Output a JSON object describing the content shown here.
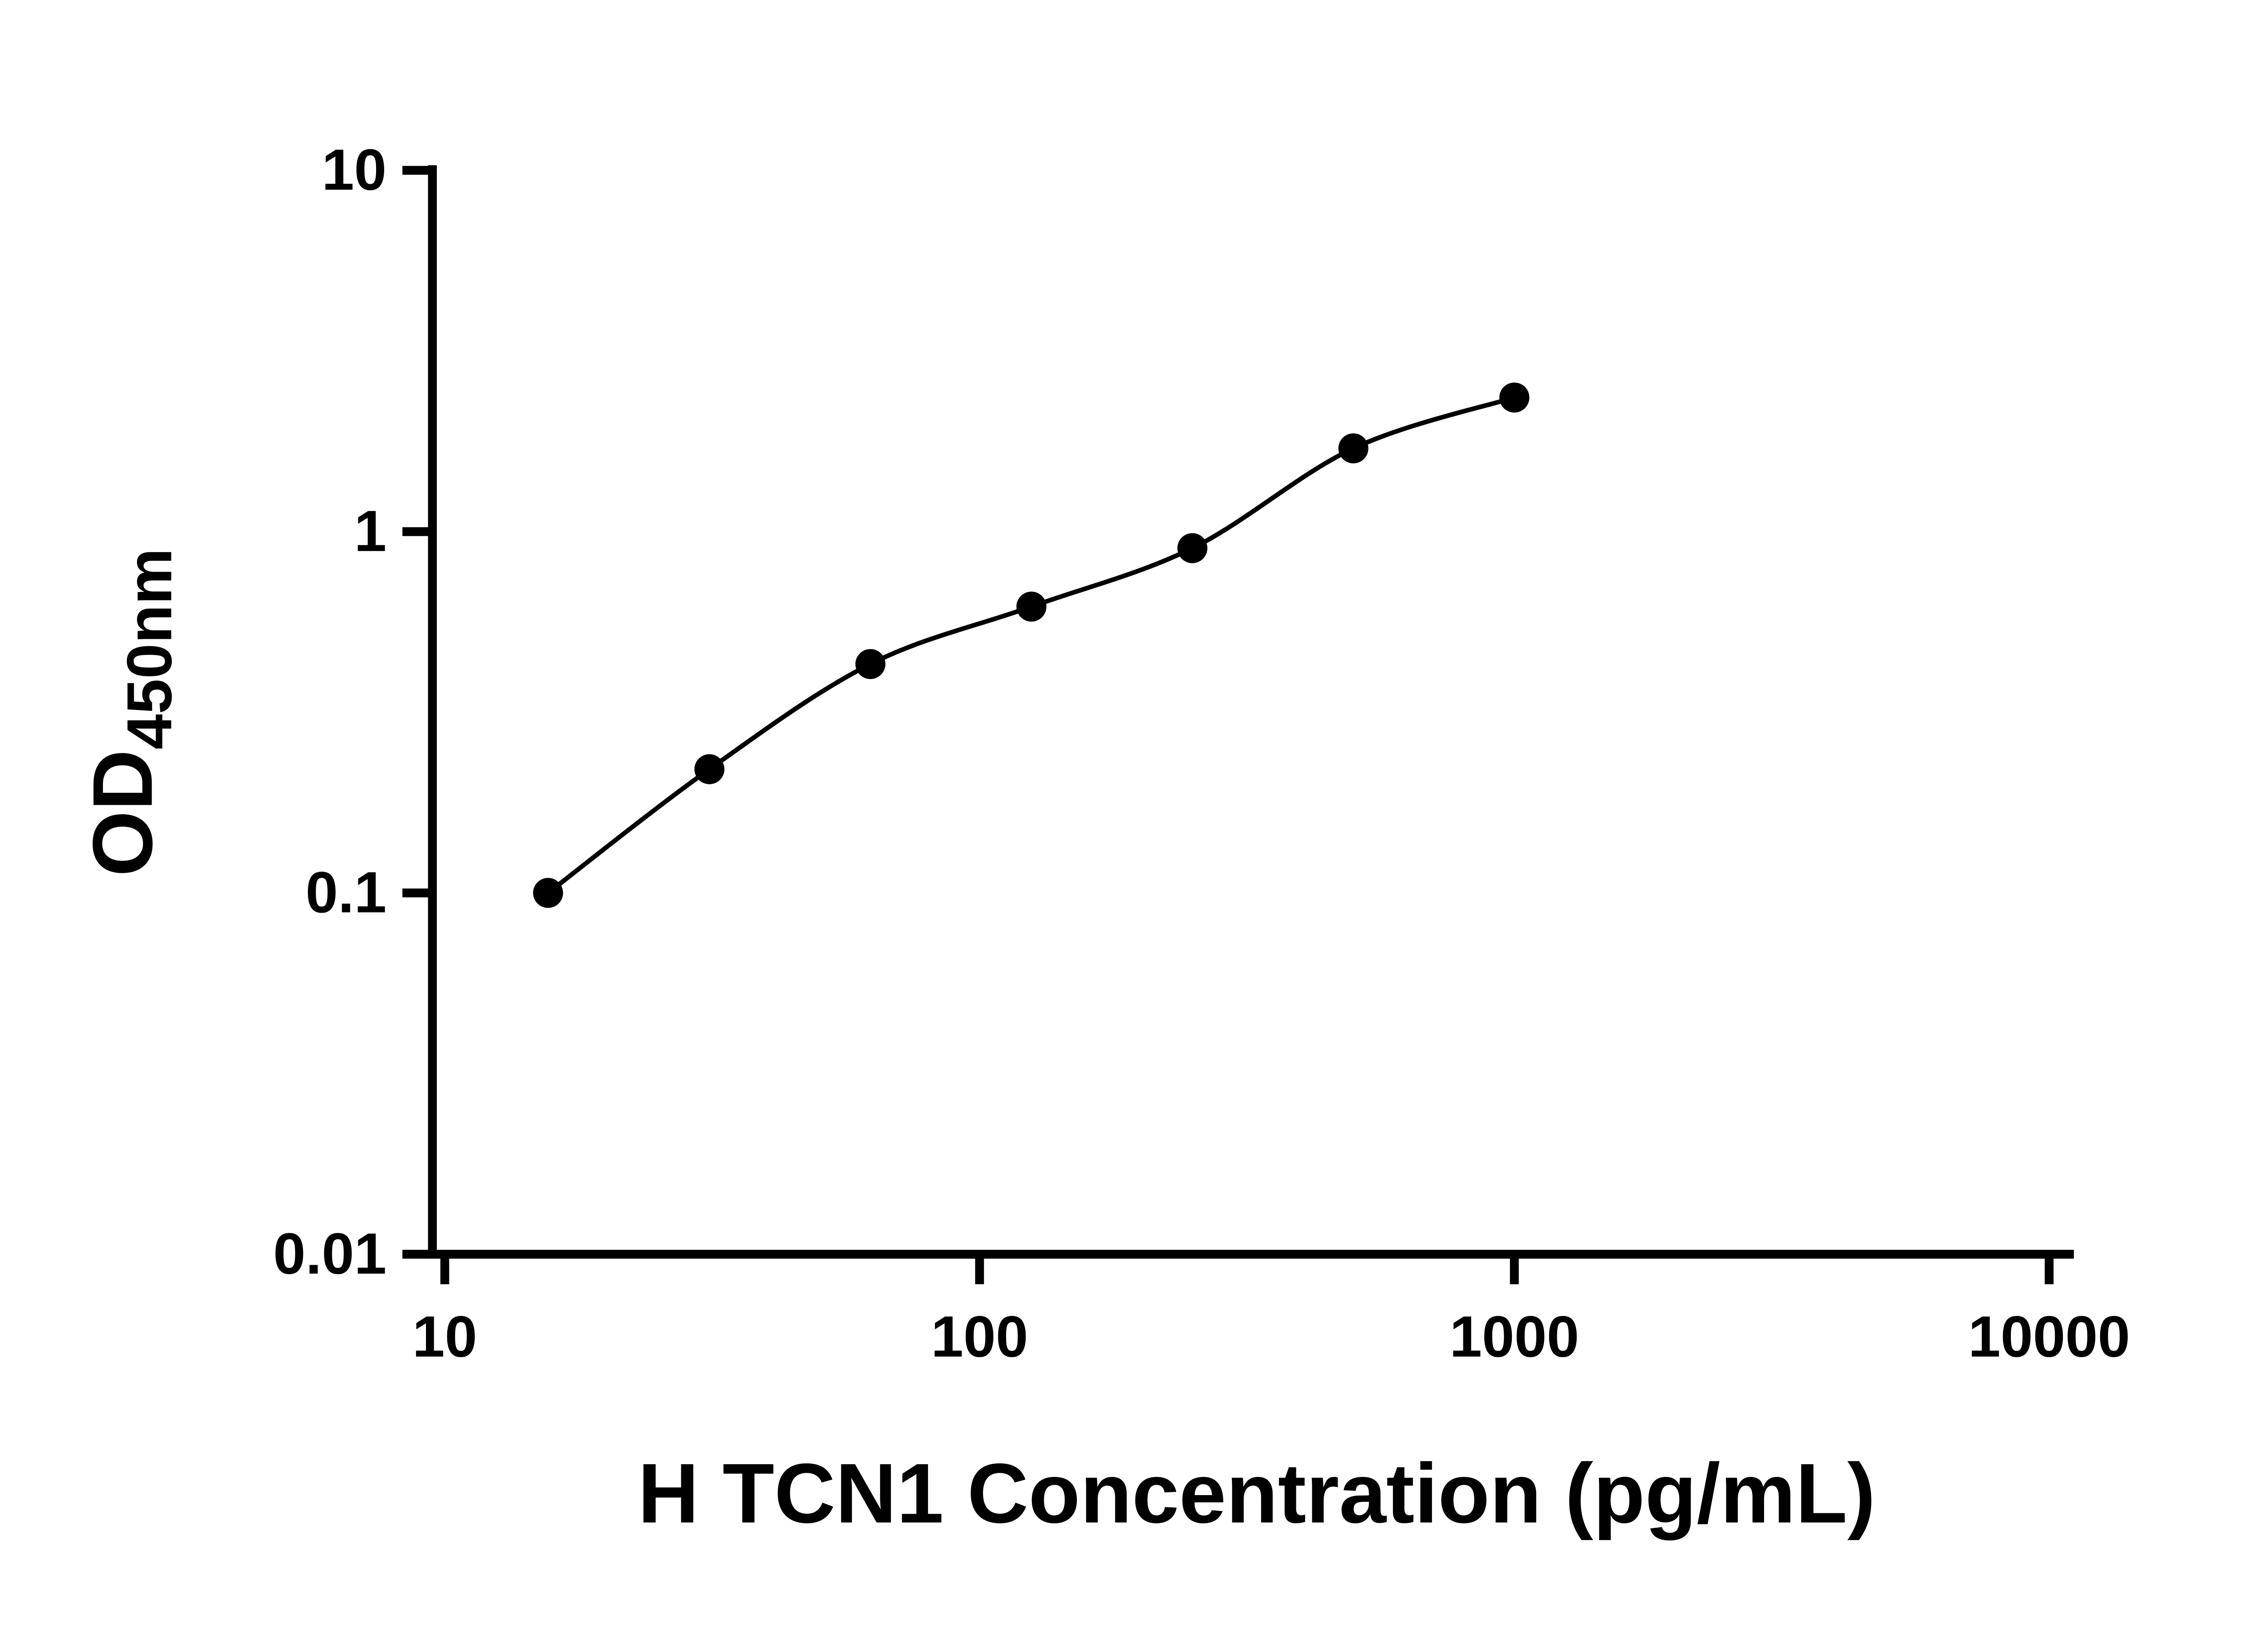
{
  "figure": {
    "background": "#ffffff"
  },
  "chart_data": {
    "type": "scatter",
    "title": "",
    "xlabel": "H TCN1 Concentration (pg/mL)",
    "ylabel": "OD450nm",
    "ylabel_main": "OD",
    "ylabel_sub": "450nm",
    "x_scale": "log",
    "y_scale": "log",
    "xlim": [
      10,
      10000
    ],
    "ylim": [
      0.01,
      10
    ],
    "x_ticks": [
      10,
      100,
      1000,
      10000
    ],
    "x_tick_labels": [
      "10",
      "100",
      "1000",
      "10000"
    ],
    "y_ticks": [
      0.01,
      0.1,
      1,
      10
    ],
    "y_tick_labels": [
      "0.01",
      "0.1",
      "1",
      "10"
    ],
    "x": [
      15.6,
      31.25,
      62.5,
      125,
      250,
      500,
      1000
    ],
    "y": [
      0.1,
      0.22,
      0.43,
      0.62,
      0.9,
      1.7,
      2.35
    ],
    "fit_curve": true,
    "legend": false,
    "grid": false,
    "colors": {
      "axis": "#000000",
      "marker": "#000000",
      "curve": "#000000"
    }
  }
}
